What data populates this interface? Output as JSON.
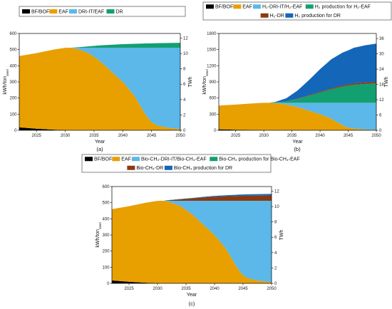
{
  "colors": {
    "bfbof": "#000000",
    "eaf": "#E89F00",
    "dri": "#5BB8E8",
    "dr": "#13A070",
    "h2prod_eaf": "#13A070",
    "h2dr": "#8B3A10",
    "h2prod_dr": "#1366B8",
    "bio_prod_eaf": "#13A070",
    "bio_dr": "#8B3A10",
    "bio_prod_dr": "#1366B8"
  },
  "chart_data": [
    {
      "id": "a",
      "type": "area",
      "caption": "(a)",
      "xlabel": "Year",
      "ylabel": "kWh/ton",
      "ylabel_sub": "steel",
      "y2label": "TWh",
      "xlim": [
        2022,
        2050
      ],
      "ylim": [
        0,
        600
      ],
      "y2lim": [
        0,
        12.6
      ],
      "xticks": [
        "2025",
        "2030",
        "2035",
        "2040",
        "2045",
        "2050"
      ],
      "xtick_values": [
        2025,
        2030,
        2035,
        2040,
        2045,
        2050
      ],
      "yticks": [
        "0",
        "100",
        "200",
        "300",
        "400",
        "500",
        "600"
      ],
      "ytick_values": [
        0,
        100,
        200,
        300,
        400,
        500,
        600
      ],
      "y2ticks": [
        "0",
        "2",
        "4",
        "6",
        "8",
        "10",
        "12"
      ],
      "y2tick_values": [
        0,
        2,
        4,
        6,
        8,
        10,
        12
      ],
      "legend": [
        "BF/BOF",
        "EAF",
        "DRI-IT/EAF",
        "DR"
      ],
      "x": [
        2022,
        2025,
        2028,
        2030,
        2031,
        2032,
        2034,
        2036,
        2038,
        2040,
        2042,
        2044,
        2045,
        2046,
        2048,
        2050
      ],
      "series": [
        {
          "name": "BF/BOF",
          "colorKey": "bfbof",
          "values": [
            18,
            10,
            4,
            1,
            0,
            0,
            0,
            0,
            0,
            0,
            0,
            0,
            0,
            0,
            0,
            0
          ]
        },
        {
          "name": "EAF",
          "colorKey": "eaf",
          "values": [
            442,
            468,
            496,
            510,
            512,
            505,
            480,
            430,
            365,
            300,
            215,
            95,
            50,
            30,
            15,
            8
          ]
        },
        {
          "name": "DRI-IT/EAF",
          "colorKey": "dri",
          "values": [
            0,
            0,
            0,
            0,
            0,
            7,
            32,
            82,
            147,
            212,
            297,
            417,
            462,
            482,
            497,
            504
          ]
        },
        {
          "name": "DR",
          "colorKey": "dr",
          "values": [
            0,
            0,
            0,
            0,
            0,
            2,
            8,
            14,
            18,
            22,
            24,
            26,
            27,
            28,
            29,
            30
          ]
        }
      ]
    },
    {
      "id": "b",
      "type": "area",
      "caption": "(b)",
      "xlabel": "Year",
      "ylabel": "kWh/ton",
      "ylabel_sub": "steel",
      "y2label": "TWh",
      "xlim": [
        2022,
        2050
      ],
      "ylim": [
        0,
        1800
      ],
      "y2lim": [
        0,
        38
      ],
      "xticks": [
        "2025",
        "2030",
        "2035",
        "2040",
        "2045",
        "2050"
      ],
      "xtick_values": [
        2025,
        2030,
        2035,
        2040,
        2045,
        2050
      ],
      "yticks": [
        "0",
        "300",
        "600",
        "900",
        "1200",
        "1500",
        "1800"
      ],
      "ytick_values": [
        0,
        300,
        600,
        900,
        1200,
        1500,
        1800
      ],
      "y2ticks": [
        "0",
        "6",
        "12",
        "18",
        "24",
        "30",
        "36"
      ],
      "y2tick_values": [
        0,
        6,
        12,
        18,
        24,
        30,
        36
      ],
      "legend": [
        "BF/BOF",
        "EAF",
        "H₂-DRI-IT/H₂-EAF",
        "H₂ production for H₂-EAF",
        "H₂-DR",
        "H₂ production for DR"
      ],
      "x": [
        2022,
        2025,
        2028,
        2030,
        2031,
        2032,
        2034,
        2036,
        2038,
        2040,
        2042,
        2044,
        2045,
        2046,
        2048,
        2050
      ],
      "series": [
        {
          "name": "BF/BOF",
          "colorKey": "bfbof",
          "values": [
            18,
            10,
            4,
            1,
            0,
            0,
            0,
            0,
            0,
            0,
            0,
            0,
            0,
            0,
            0,
            0
          ]
        },
        {
          "name": "EAF",
          "colorKey": "eaf",
          "values": [
            442,
            468,
            496,
            510,
            512,
            505,
            480,
            430,
            365,
            300,
            215,
            95,
            50,
            30,
            15,
            8
          ]
        },
        {
          "name": "H₂-DRI-IT/H₂-EAF",
          "colorKey": "dri",
          "values": [
            0,
            0,
            0,
            0,
            0,
            7,
            32,
            82,
            147,
            212,
            297,
            417,
            462,
            482,
            497,
            504
          ]
        },
        {
          "name": "H₂ production for H₂-EAF",
          "colorKey": "h2prod_eaf",
          "values": [
            0,
            0,
            0,
            0,
            0,
            5,
            25,
            70,
            130,
            190,
            250,
            300,
            320,
            335,
            350,
            360
          ]
        },
        {
          "name": "H₂-DR",
          "colorKey": "h2dr",
          "values": [
            0,
            0,
            0,
            0,
            0,
            1,
            3,
            7,
            10,
            14,
            18,
            22,
            24,
            26,
            28,
            30
          ]
        },
        {
          "name": "H₂ production for DR",
          "colorKey": "h2prod_dr",
          "values": [
            0,
            0,
            0,
            0,
            0,
            8,
            55,
            150,
            280,
            420,
            540,
            610,
            630,
            660,
            690,
            710
          ]
        }
      ]
    },
    {
      "id": "c",
      "type": "area",
      "caption": "(c)",
      "xlabel": "Year",
      "ylabel": "kWh/ton",
      "ylabel_sub": "steel",
      "y2label": "TWh",
      "xlim": [
        2022,
        2050
      ],
      "ylim": [
        0,
        600
      ],
      "y2lim": [
        0,
        12.6
      ],
      "xticks": [
        "2025",
        "2030",
        "2035",
        "2040",
        "2045",
        "2050"
      ],
      "xtick_values": [
        2025,
        2030,
        2035,
        2040,
        2045,
        2050
      ],
      "yticks": [
        "0",
        "100",
        "200",
        "300",
        "400",
        "500",
        "600"
      ],
      "ytick_values": [
        0,
        100,
        200,
        300,
        400,
        500,
        600
      ],
      "y2ticks": [
        "0",
        "2",
        "4",
        "6",
        "8",
        "10",
        "12"
      ],
      "y2tick_values": [
        0,
        2,
        4,
        6,
        8,
        10,
        12
      ],
      "legend": [
        "BF/BOF",
        "EAF",
        "Bio-CH₄-DRI-IT/Bio-CH₄-EAF",
        "Bio-CH₄ production for Bio-CH₄-EAF",
        "Bio-CH₄-DR",
        "Bio-CH₄ production for DR"
      ],
      "x": [
        2022,
        2025,
        2028,
        2030,
        2031,
        2032,
        2034,
        2036,
        2038,
        2040,
        2042,
        2044,
        2045,
        2046,
        2048,
        2050
      ],
      "series": [
        {
          "name": "BF/BOF",
          "colorKey": "bfbof",
          "values": [
            18,
            10,
            4,
            1,
            0,
            0,
            0,
            0,
            0,
            0,
            0,
            0,
            0,
            0,
            0,
            0
          ]
        },
        {
          "name": "EAF",
          "colorKey": "eaf",
          "values": [
            442,
            468,
            496,
            510,
            512,
            505,
            480,
            430,
            365,
            300,
            215,
            95,
            50,
            30,
            15,
            8
          ]
        },
        {
          "name": "Bio-CH₄-DRI-IT/Bio-CH₄-EAF",
          "colorKey": "dri",
          "values": [
            0,
            0,
            0,
            0,
            0,
            7,
            32,
            82,
            147,
            212,
            297,
            417,
            462,
            482,
            497,
            504
          ]
        },
        {
          "name": "Bio-CH₄ production for Bio-CH₄-EAF",
          "colorKey": "bio_prod_eaf",
          "values": [
            0,
            0,
            0,
            0,
            0,
            0,
            0,
            0,
            0,
            0,
            0,
            0,
            0,
            0,
            0,
            0
          ]
        },
        {
          "name": "Bio-CH₄-DR",
          "colorKey": "bio_dr",
          "values": [
            0,
            0,
            0,
            0,
            0,
            3,
            9,
            14,
            20,
            25,
            28,
            30,
            31,
            32,
            32,
            33
          ]
        },
        {
          "name": "Bio-CH₄ production for DR",
          "colorKey": "bio_prod_dr",
          "values": [
            0,
            0,
            0,
            0,
            0,
            1,
            2,
            3,
            4,
            5,
            6,
            7,
            8,
            8,
            9,
            9
          ]
        }
      ]
    }
  ]
}
